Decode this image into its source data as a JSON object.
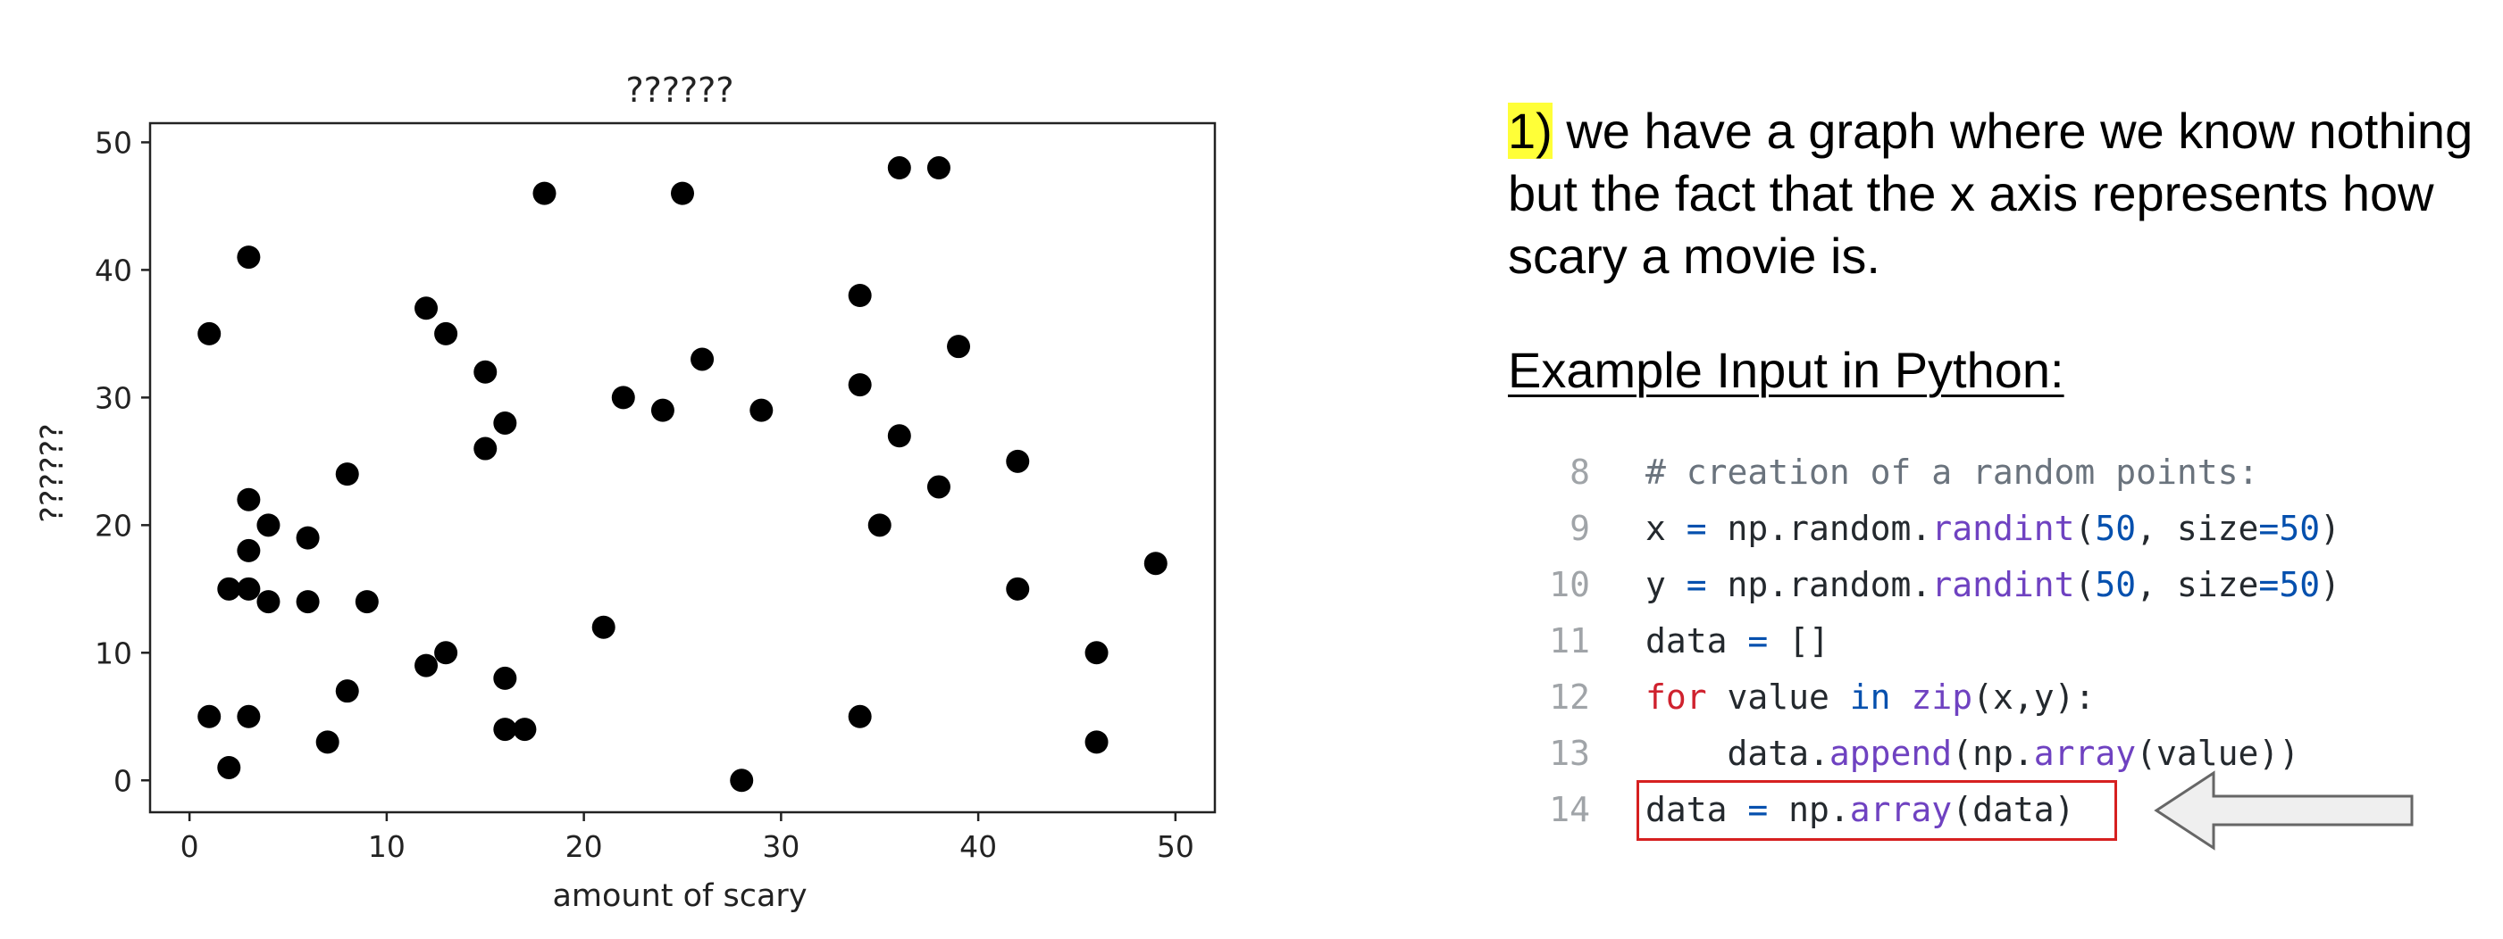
{
  "chart_data": {
    "type": "scatter",
    "title": "??????",
    "xlabel": "amount of scary",
    "ylabel": "??????",
    "xlim": [
      -2,
      52
    ],
    "ylim": [
      -2.5,
      51.5
    ],
    "xticks": [
      0,
      10,
      20,
      30,
      40,
      50
    ],
    "yticks": [
      0,
      10,
      20,
      30,
      40,
      50
    ],
    "grid": false,
    "marker_color": "#000000",
    "points": [
      {
        "x": 1,
        "y": 35
      },
      {
        "x": 1,
        "y": 5
      },
      {
        "x": 2,
        "y": 15
      },
      {
        "x": 2,
        "y": 1
      },
      {
        "x": 3,
        "y": 41
      },
      {
        "x": 3,
        "y": 22
      },
      {
        "x": 3,
        "y": 18
      },
      {
        "x": 3,
        "y": 15
      },
      {
        "x": 3,
        "y": 5
      },
      {
        "x": 4,
        "y": 20
      },
      {
        "x": 4,
        "y": 14
      },
      {
        "x": 6,
        "y": 19
      },
      {
        "x": 6,
        "y": 14
      },
      {
        "x": 7,
        "y": 3
      },
      {
        "x": 8,
        "y": 24
      },
      {
        "x": 8,
        "y": 7
      },
      {
        "x": 9,
        "y": 14
      },
      {
        "x": 12,
        "y": 37
      },
      {
        "x": 12,
        "y": 9
      },
      {
        "x": 13,
        "y": 35
      },
      {
        "x": 13,
        "y": 10
      },
      {
        "x": 15,
        "y": 32
      },
      {
        "x": 15,
        "y": 26
      },
      {
        "x": 16,
        "y": 28
      },
      {
        "x": 16,
        "y": 8
      },
      {
        "x": 16,
        "y": 4
      },
      {
        "x": 17,
        "y": 4
      },
      {
        "x": 18,
        "y": 46
      },
      {
        "x": 21,
        "y": 12
      },
      {
        "x": 22,
        "y": 30
      },
      {
        "x": 24,
        "y": 29
      },
      {
        "x": 25,
        "y": 46
      },
      {
        "x": 26,
        "y": 33
      },
      {
        "x": 28,
        "y": 0
      },
      {
        "x": 29,
        "y": 29
      },
      {
        "x": 34,
        "y": 38
      },
      {
        "x": 34,
        "y": 31
      },
      {
        "x": 34,
        "y": 5
      },
      {
        "x": 35,
        "y": 20
      },
      {
        "x": 36,
        "y": 48
      },
      {
        "x": 36,
        "y": 27
      },
      {
        "x": 38,
        "y": 48
      },
      {
        "x": 38,
        "y": 23
      },
      {
        "x": 39,
        "y": 34
      },
      {
        "x": 42,
        "y": 25
      },
      {
        "x": 42,
        "y": 15
      },
      {
        "x": 46,
        "y": 10
      },
      {
        "x": 46,
        "y": 3
      },
      {
        "x": 49,
        "y": 17
      }
    ]
  },
  "explanation": {
    "number": "1)",
    "text": " we have a graph where we know nothing but the fact that the x axis represents how scary a movie is.",
    "highlight_color": "#ffff38"
  },
  "example_heading": "Example Input in Python:",
  "code": {
    "lines": [
      {
        "num": "8",
        "tokens": [
          {
            "t": "# creation of a random points:",
            "c": "comment"
          }
        ]
      },
      {
        "num": "9",
        "tokens": [
          {
            "t": "x ",
            "c": ""
          },
          {
            "t": "=",
            "c": "op"
          },
          {
            "t": " np.random.",
            "c": ""
          },
          {
            "t": "randint",
            "c": "func"
          },
          {
            "t": "(",
            "c": ""
          },
          {
            "t": "50",
            "c": "num"
          },
          {
            "t": ", size",
            "c": ""
          },
          {
            "t": "=",
            "c": "op"
          },
          {
            "t": "50",
            "c": "num"
          },
          {
            "t": ")",
            "c": ""
          }
        ]
      },
      {
        "num": "10",
        "tokens": [
          {
            "t": "y ",
            "c": ""
          },
          {
            "t": "=",
            "c": "op"
          },
          {
            "t": " np.random.",
            "c": ""
          },
          {
            "t": "randint",
            "c": "func"
          },
          {
            "t": "(",
            "c": ""
          },
          {
            "t": "50",
            "c": "num"
          },
          {
            "t": ", size",
            "c": ""
          },
          {
            "t": "=",
            "c": "op"
          },
          {
            "t": "50",
            "c": "num"
          },
          {
            "t": ")",
            "c": ""
          }
        ]
      },
      {
        "num": "11",
        "tokens": [
          {
            "t": "data ",
            "c": ""
          },
          {
            "t": "=",
            "c": "op"
          },
          {
            "t": " []",
            "c": ""
          }
        ]
      },
      {
        "num": "12",
        "tokens": [
          {
            "t": "for",
            "c": "kw"
          },
          {
            "t": " value ",
            "c": ""
          },
          {
            "t": "in",
            "c": "kw2"
          },
          {
            "t": " ",
            "c": ""
          },
          {
            "t": "zip",
            "c": "func"
          },
          {
            "t": "(x,y):",
            "c": ""
          }
        ]
      },
      {
        "num": "13",
        "tokens": [
          {
            "t": "    data.",
            "c": ""
          },
          {
            "t": "append",
            "c": "func"
          },
          {
            "t": "(np.",
            "c": ""
          },
          {
            "t": "array",
            "c": "func"
          },
          {
            "t": "(value))",
            "c": ""
          }
        ]
      },
      {
        "num": "14",
        "tokens": [
          {
            "t": "data ",
            "c": ""
          },
          {
            "t": "=",
            "c": "op"
          },
          {
            "t": " np.",
            "c": ""
          },
          {
            "t": "array",
            "c": "func"
          },
          {
            "t": "(data)",
            "c": ""
          }
        ]
      }
    ],
    "highlight_box_color": "#d62020"
  },
  "arrow": {
    "icon": "left-arrow-icon",
    "fill": "#efefef",
    "stroke": "#666666"
  }
}
